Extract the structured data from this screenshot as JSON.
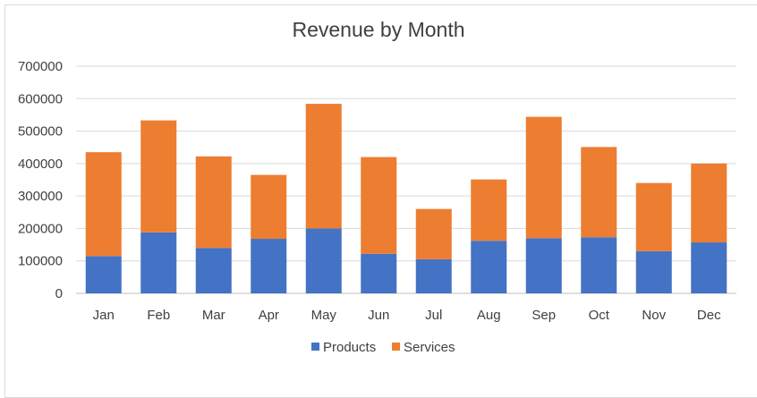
{
  "chart_data": {
    "type": "bar",
    "stacked": true,
    "title": "Revenue by Month",
    "categories": [
      "Jan",
      "Feb",
      "Mar",
      "Apr",
      "May",
      "Jun",
      "Jul",
      "Aug",
      "Sep",
      "Oct",
      "Nov",
      "Dec"
    ],
    "series": [
      {
        "name": "Products",
        "color": "#4472C4",
        "values": [
          115000,
          188000,
          140000,
          168000,
          200000,
          122000,
          105000,
          162000,
          170000,
          173000,
          130000,
          157000
        ]
      },
      {
        "name": "Services",
        "color": "#ED7D31",
        "values": [
          320000,
          345000,
          282000,
          197000,
          384000,
          298000,
          155000,
          189000,
          374000,
          278000,
          210000,
          243000
        ]
      }
    ],
    "ylim": [
      0,
      700000
    ],
    "yticks": [
      "0",
      "100000",
      "200000",
      "300000",
      "400000",
      "500000",
      "600000",
      "700000"
    ],
    "grid": true,
    "legend_position": "bottom"
  }
}
